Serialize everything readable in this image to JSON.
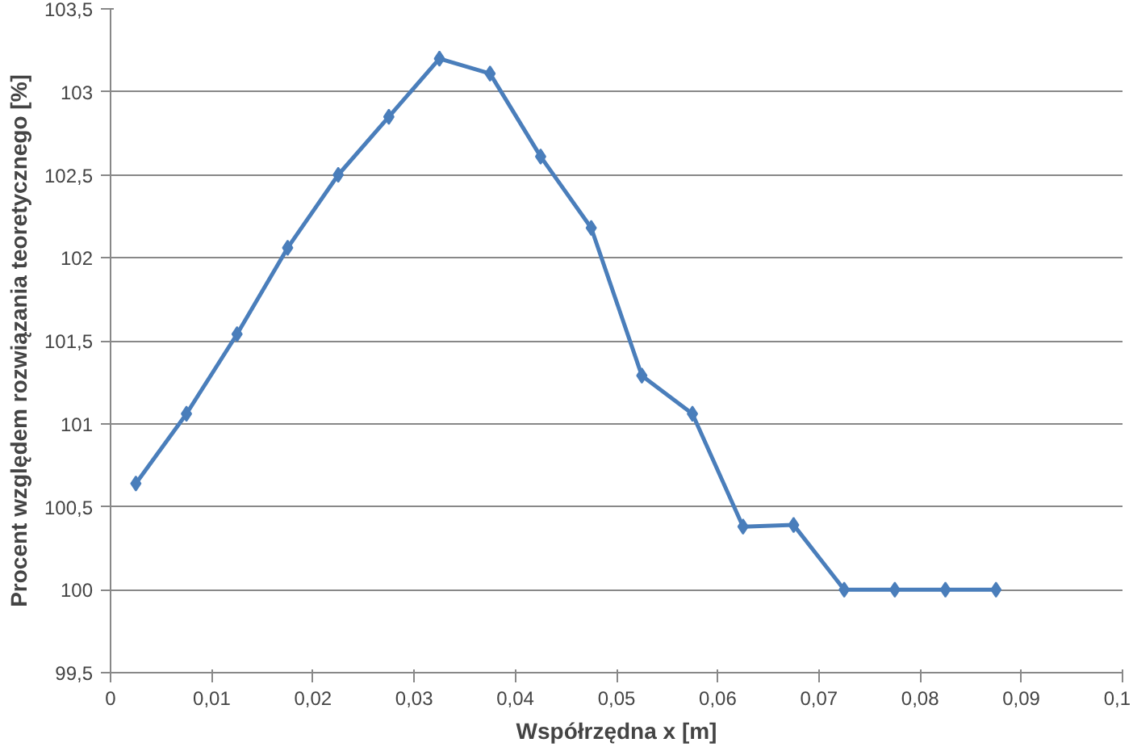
{
  "chart_data": {
    "type": "line",
    "xlabel": "Współrzędna x [m]",
    "ylabel": "Procent względem rozwiązania teoretycznego [%]",
    "x": [
      0.0025,
      0.0075,
      0.0125,
      0.0175,
      0.0225,
      0.0275,
      0.0325,
      0.0375,
      0.0425,
      0.0475,
      0.0525,
      0.0575,
      0.0625,
      0.0675,
      0.0725,
      0.0775,
      0.0825,
      0.0875
    ],
    "series": [
      {
        "color": "#4a7ebb",
        "values": [
          100.64,
          101.06,
          101.54,
          102.06,
          102.5,
          102.85,
          103.2,
          103.11,
          102.61,
          102.18,
          101.29,
          101.06,
          100.38,
          100.39,
          100,
          100,
          100,
          100
        ]
      }
    ],
    "xlim": [
      0,
      0.1
    ],
    "ylim": [
      99.5,
      103.5
    ],
    "xticks": [
      0,
      {
        "value": 0.01,
        "label": "0,01"
      },
      {
        "value": 0.02,
        "label": "0,02"
      },
      {
        "value": 0.03,
        "label": "0,03"
      },
      {
        "value": 0.04,
        "label": "0,04"
      },
      {
        "value": 0.05,
        "label": "0,05"
      },
      {
        "value": 0.06,
        "label": "0,06"
      },
      {
        "value": 0.07,
        "label": "0,07"
      },
      {
        "value": 0.08,
        "label": "0,08"
      },
      {
        "value": 0.09,
        "label": "0,09"
      },
      {
        "value": 0.1,
        "label": "0,1"
      }
    ],
    "yticks": [
      {
        "value": 99.5,
        "label": "99,5"
      },
      100,
      {
        "value": 100.5,
        "label": "100,5"
      },
      101,
      {
        "value": 101.5,
        "label": "101,5"
      },
      102,
      {
        "value": 102.5,
        "label": "102,5"
      },
      103,
      {
        "value": 103.5,
        "label": "103,5"
      }
    ],
    "grid": "y",
    "marker": "diamond",
    "line_style": "solid"
  }
}
